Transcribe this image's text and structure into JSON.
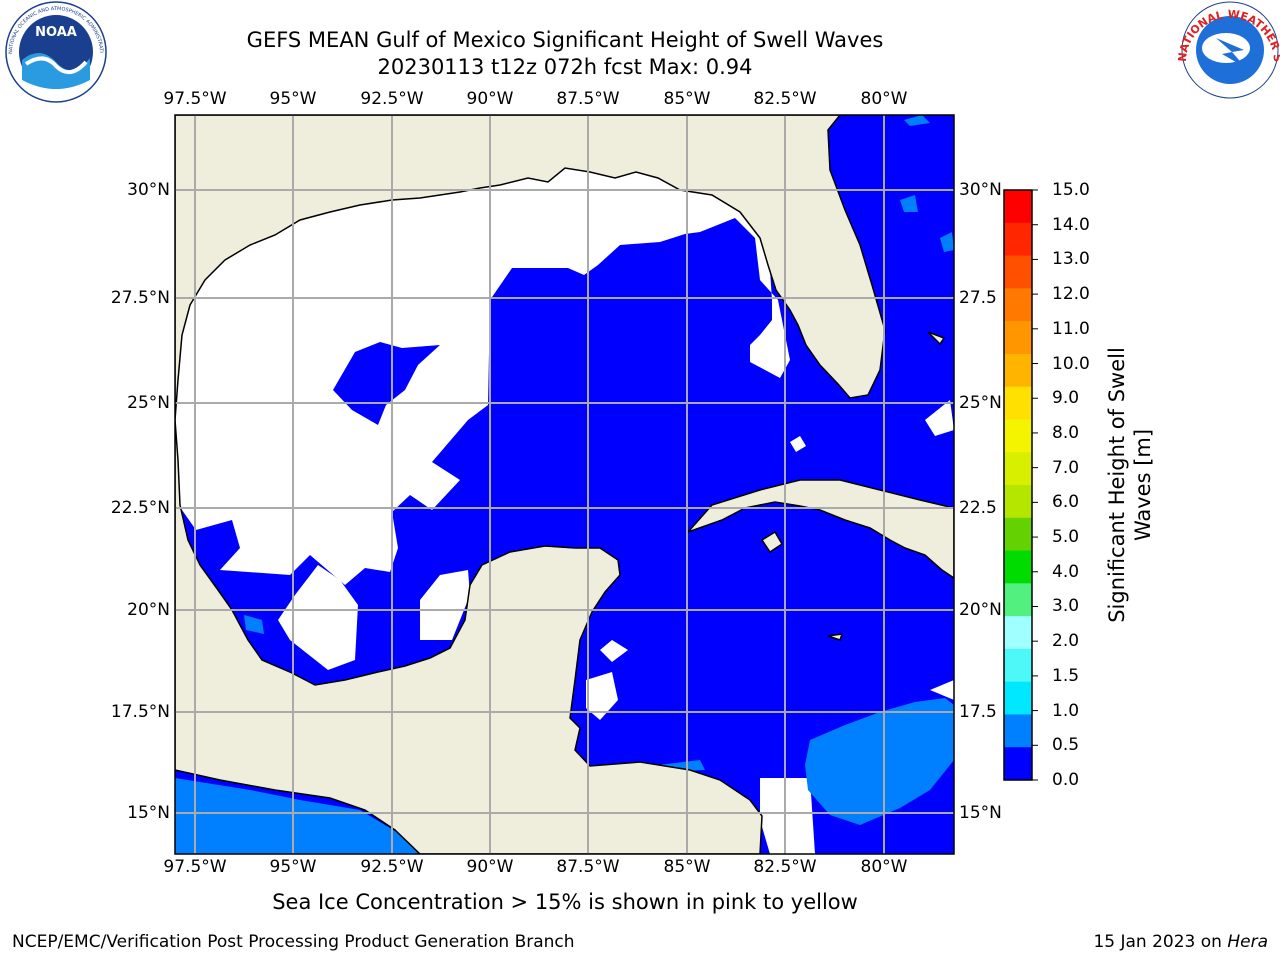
{
  "title_line1": "GEFS MEAN Gulf of Mexico Significant Height of Swell Waves",
  "title_line2": "20230113 t12z 072h fcst   Max: 0.94",
  "colorbar": {
    "label_line1": "Significant Height of Swell",
    "label_line2": "Waves [m]",
    "ticks": [
      "15.0",
      "14.0",
      "13.0",
      "12.0",
      "11.0",
      "10.0",
      "9.0",
      "8.0",
      "7.0",
      "6.0",
      "5.0",
      "4.0",
      "3.0",
      "2.0",
      "1.5",
      "1.0",
      "0.5",
      "0.0"
    ],
    "colors": [
      "#ff0000",
      "#ff2600",
      "#ff5000",
      "#ff7800",
      "#ff9600",
      "#ffb400",
      "#ffe000",
      "#f4f400",
      "#d8f000",
      "#b4e600",
      "#64d200",
      "#00dc00",
      "#52f07e",
      "#a0ffff",
      "#4cf8f8",
      "#00e8ff",
      "#0080ff",
      "#0000ff"
    ]
  },
  "map": {
    "lon_ticks": [
      "97.5°W",
      "95°W",
      "92.5°W",
      "90°W",
      "87.5°W",
      "85°W",
      "82.5°W",
      "80°W"
    ],
    "lat_ticks": [
      "30°N",
      "27.5°N",
      "25°N",
      "22.5°N",
      "20°N",
      "17.5°N",
      "15°N"
    ],
    "lat_ticks_right": [
      "30°N",
      "27.5",
      "25°N",
      "22.5",
      "20°N",
      "17.5",
      "15°N"
    ],
    "land_color": "#efeedc",
    "swell_0_0.5_color": "#0000ff",
    "swell_0.5_1.0_color": "#0080ff",
    "no_data_color": "#ffffff"
  },
  "note": "Sea Ice Concentration > 15% is shown in pink to yellow",
  "footer": {
    "left": "NCEP/EMC/Verification Post Processing Product Generation Branch",
    "right_date": "15 Jan 2023 on ",
    "right_host": "Hera"
  },
  "logos": {
    "noaa": "NOAA",
    "noaa_ring": "NATIONAL OCEANIC AND ATMOSPHERIC ADMINISTRATION · U.S. DEPARTMENT OF COMMERCE",
    "nws_ring": "NATIONAL WEATHER SERVICE"
  }
}
